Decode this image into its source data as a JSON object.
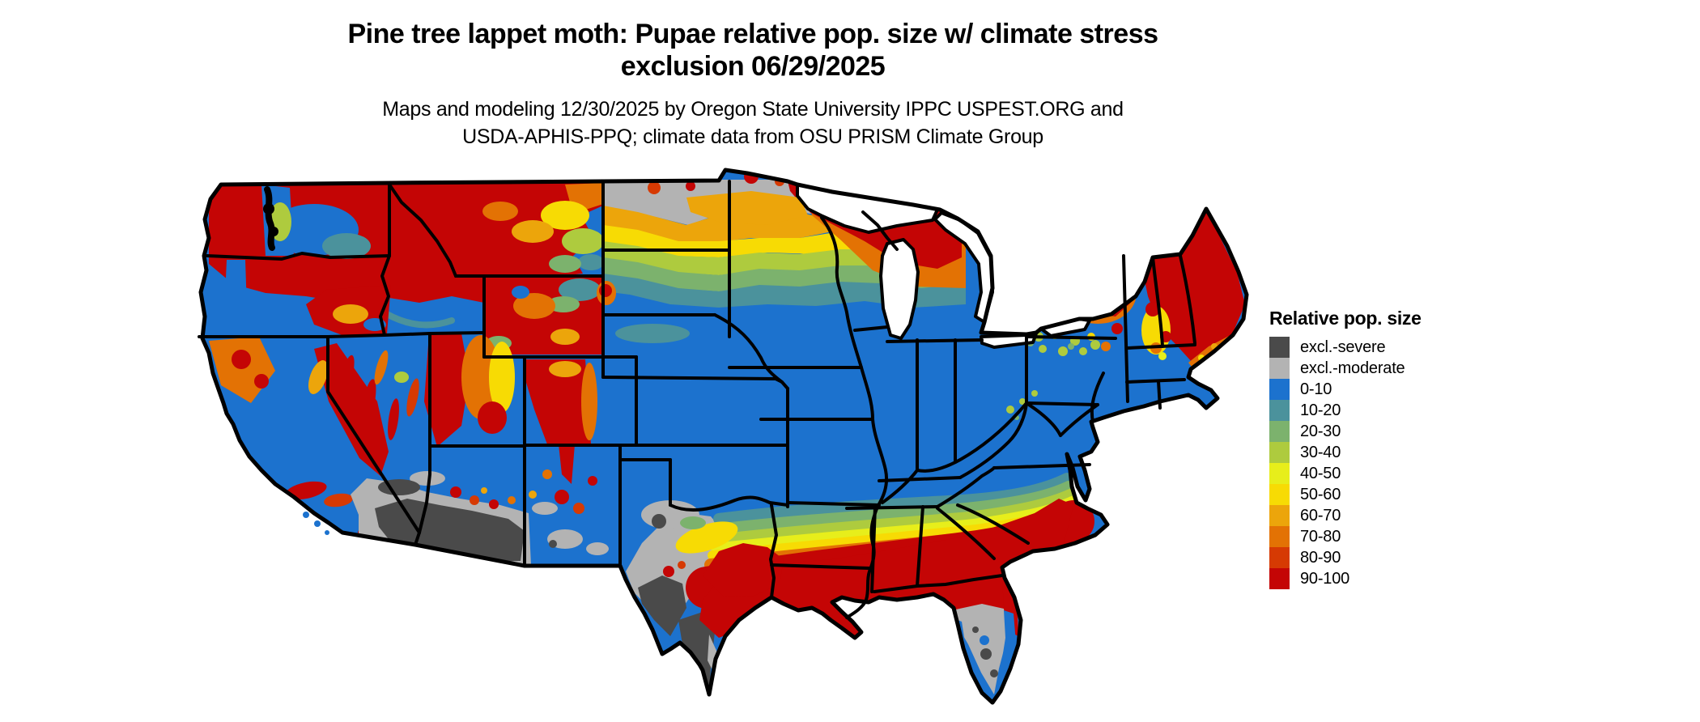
{
  "title": {
    "line1": "Pine tree lappet moth: Pupae relative pop. size w/ climate stress",
    "line2": "exclusion 06/29/2025"
  },
  "subtitle": {
    "line1": "Maps and modeling 12/30/2025 by Oregon State University IPPC USPEST.ORG and",
    "line2": "USDA-APHIS-PPQ; climate data from OSU PRISM Climate Group"
  },
  "legend": {
    "title": "Relative pop. size",
    "entries": [
      {
        "label": "excl.-severe",
        "color": "#4a4a4a"
      },
      {
        "label": "excl.-moderate",
        "color": "#b3b3b3"
      },
      {
        "label": "0-10",
        "color": "#1c72ce"
      },
      {
        "label": "10-20",
        "color": "#4b929c"
      },
      {
        "label": "20-30",
        "color": "#7cb26d"
      },
      {
        "label": "30-40",
        "color": "#aecb3e"
      },
      {
        "label": "40-50",
        "color": "#e7ee1b"
      },
      {
        "label": "50-60",
        "color": "#f7db04"
      },
      {
        "label": "60-70",
        "color": "#eca50b"
      },
      {
        "label": "70-80",
        "color": "#e37204"
      },
      {
        "label": "80-90",
        "color": "#d63a03"
      },
      {
        "label": "90-100",
        "color": "#c40505"
      }
    ]
  },
  "map": {
    "region": "Continental United States",
    "border_color": "#000000",
    "background": "#ffffff",
    "base_fill": "#1c72ce"
  }
}
